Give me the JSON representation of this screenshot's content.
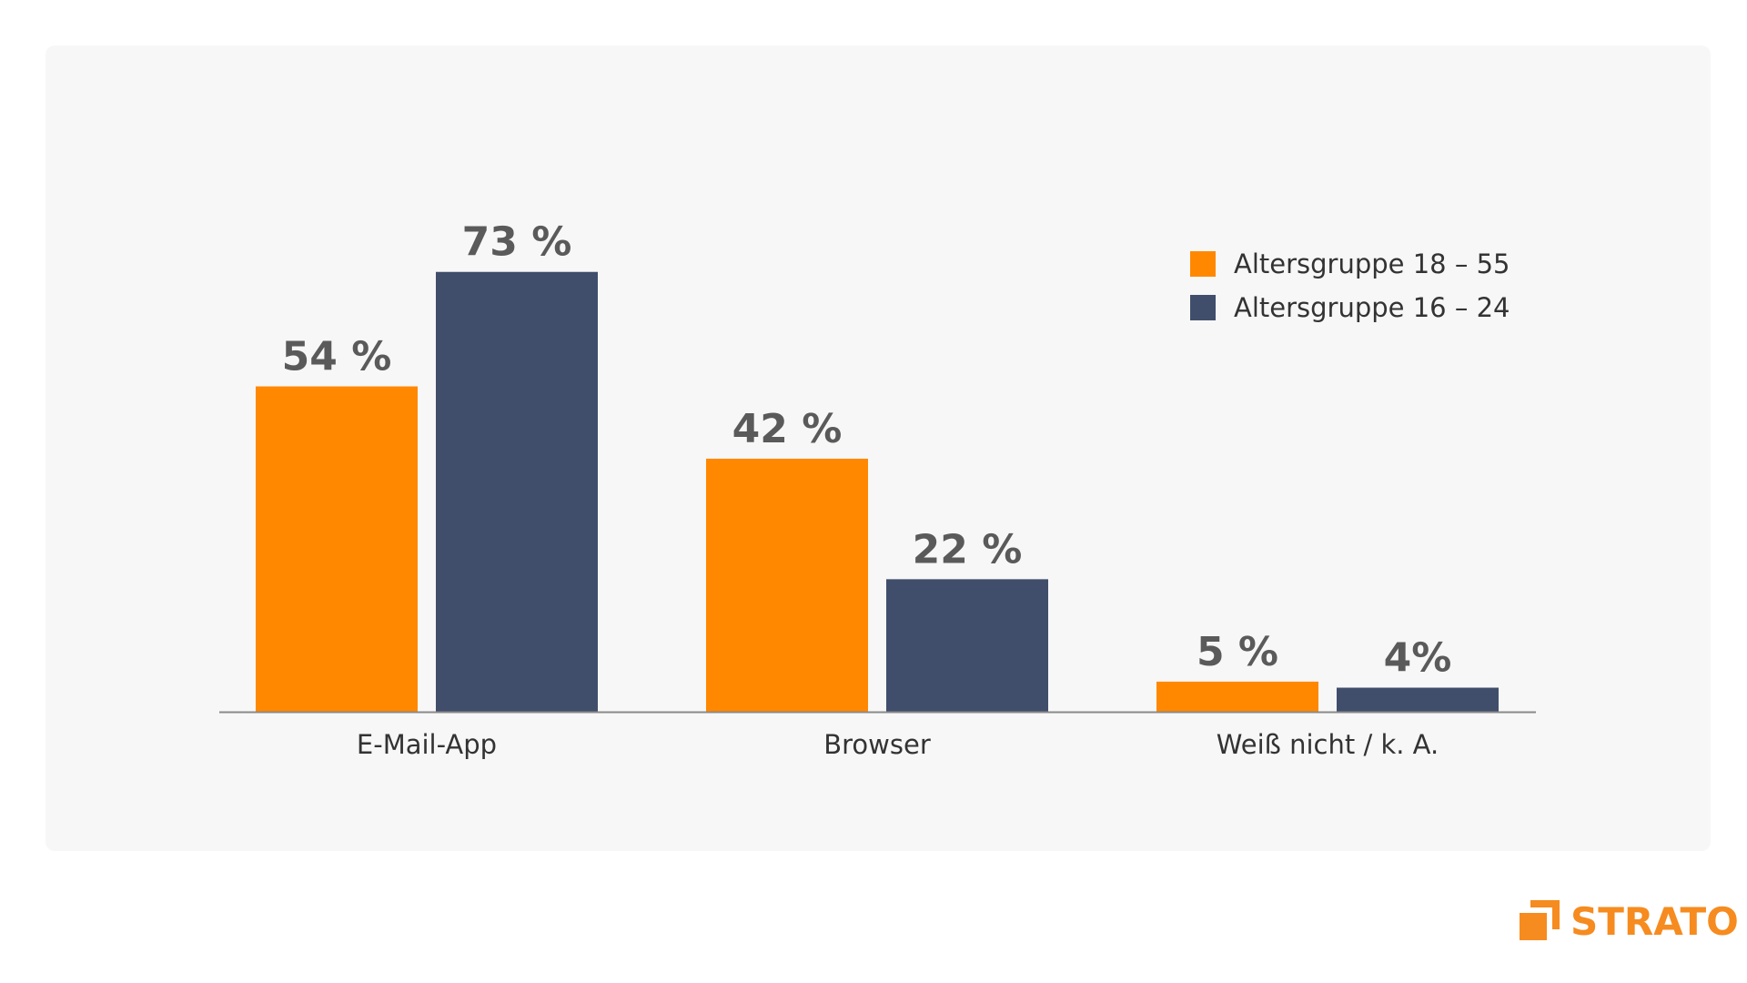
{
  "chart_data": {
    "type": "bar",
    "categories": [
      "E-Mail-App",
      "Browser",
      "Weiß nicht / k. A."
    ],
    "series": [
      {
        "name": "Altersgruppe 18 – 55",
        "color": "#ff8800",
        "values": [
          54,
          42,
          5
        ],
        "labels": [
          "54 %",
          "42 %",
          "5 %"
        ]
      },
      {
        "name": "Altersgruppe 16 – 24",
        "color": "#404e6b",
        "values": [
          73,
          22,
          4
        ],
        "labels": [
          "73 %",
          "22 %",
          "4%"
        ]
      }
    ],
    "ylim": [
      0,
      100
    ],
    "grid": false,
    "legend_position": "top-right",
    "title": "",
    "xlabel": "",
    "ylabel": ""
  },
  "brand": {
    "logo_text": "STRATO",
    "color": "#f68b1f"
  }
}
